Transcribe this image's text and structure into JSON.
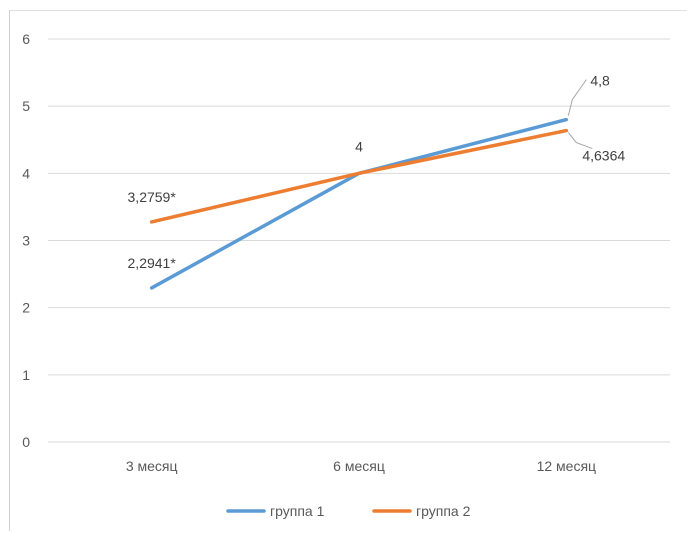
{
  "chart_data": {
    "type": "line",
    "categories": [
      "3 месяц",
      "6 месяц",
      "12 месяц"
    ],
    "series": [
      {
        "name": "группа 1",
        "values": [
          2.2941,
          4,
          4.8
        ],
        "labels": [
          "2,2941*",
          "4",
          "4,8"
        ],
        "color": "#5b9bd5"
      },
      {
        "name": "группа 2",
        "values": [
          3.2759,
          4,
          4.6364
        ],
        "labels": [
          "3,2759*",
          "",
          "4,6364"
        ],
        "color": "#ed7d31"
      }
    ],
    "y_ticks": [
      "0",
      "1",
      "2",
      "3",
      "4",
      "5",
      "6"
    ],
    "ylim": [
      0,
      6
    ],
    "grid": true,
    "legend_position": "bottom"
  }
}
